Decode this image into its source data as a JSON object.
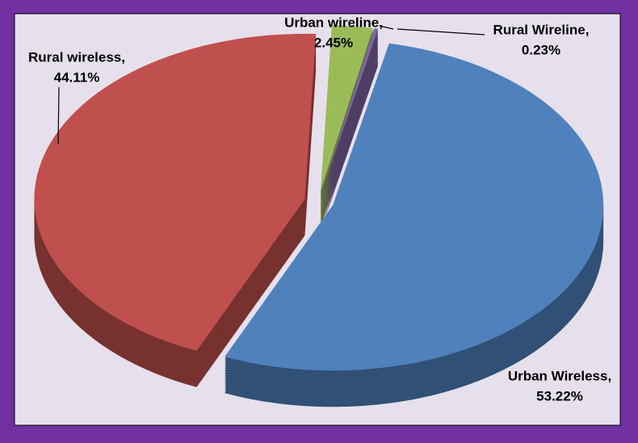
{
  "chart_data": {
    "type": "pie3d",
    "categories": [
      "Urban Wireless,",
      "Rural wireless,",
      "Urban wireline,",
      "Rural Wireline,"
    ],
    "values": [
      53.22,
      44.11,
      2.45,
      0.23
    ],
    "value_labels": [
      "53.22%",
      "44.11%",
      "2.45%",
      "0.23%"
    ],
    "colors": [
      "#4f81bd",
      "#c0504d",
      "#9bbb59",
      "#8064a2"
    ]
  }
}
